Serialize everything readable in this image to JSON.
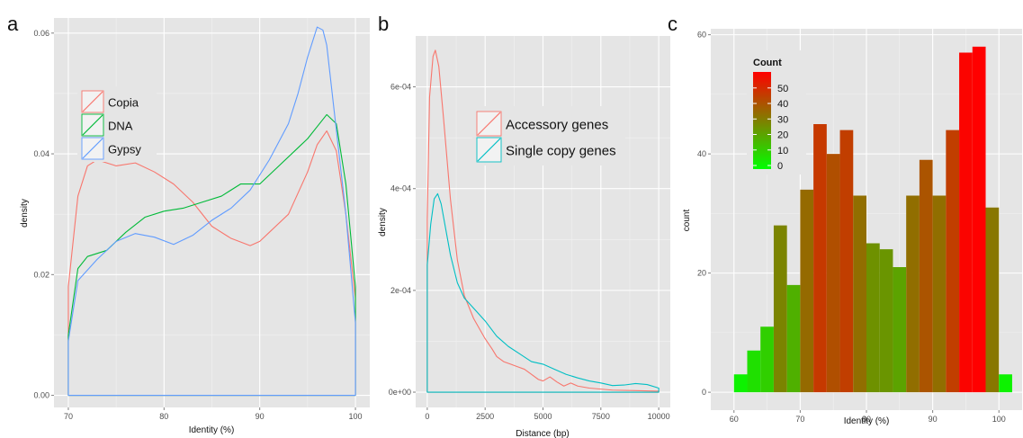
{
  "chart_data": [
    {
      "panel": "a",
      "type": "line",
      "title": "",
      "xlabel": "Identity (%)",
      "ylabel": "density",
      "xlim": [
        68.5,
        101.5
      ],
      "ylim": [
        -0.002,
        0.0625
      ],
      "x_ticks": [
        70,
        80,
        90,
        100
      ],
      "y_ticks": [
        0.0,
        0.02,
        0.04,
        0.06
      ],
      "y_tick_labels": [
        "0.00",
        "0.02",
        "0.04",
        "0.06"
      ],
      "grid": true,
      "legend_position": "top-left",
      "series": [
        {
          "name": "Copia",
          "color": "#F8766D",
          "points": [
            [
              70,
              0
            ],
            [
              70,
              0.018
            ],
            [
              71,
              0.033
            ],
            [
              72,
              0.038
            ],
            [
              73,
              0.039
            ],
            [
              75,
              0.038
            ],
            [
              77,
              0.0385
            ],
            [
              79,
              0.037
            ],
            [
              81,
              0.035
            ],
            [
              83,
              0.032
            ],
            [
              85,
              0.028
            ],
            [
              87,
              0.026
            ],
            [
              89,
              0.0248
            ],
            [
              90,
              0.0255
            ],
            [
              91,
              0.027
            ],
            [
              93,
              0.03
            ],
            [
              95,
              0.037
            ],
            [
              96,
              0.0415
            ],
            [
              97,
              0.0438
            ],
            [
              98,
              0.0405
            ],
            [
              99,
              0.03
            ],
            [
              100,
              0.016
            ],
            [
              100,
              0
            ]
          ]
        },
        {
          "name": "DNA",
          "color": "#00BA38",
          "points": [
            [
              70,
              0
            ],
            [
              70,
              0.01
            ],
            [
              71,
              0.021
            ],
            [
              72,
              0.023
            ],
            [
              74,
              0.024
            ],
            [
              76,
              0.027
            ],
            [
              78,
              0.0295
            ],
            [
              80,
              0.0305
            ],
            [
              82,
              0.031
            ],
            [
              84,
              0.032
            ],
            [
              86,
              0.033
            ],
            [
              88,
              0.035
            ],
            [
              90,
              0.035
            ],
            [
              92,
              0.038
            ],
            [
              94,
              0.041
            ],
            [
              95,
              0.0425
            ],
            [
              96,
              0.0445
            ],
            [
              97,
              0.0465
            ],
            [
              98,
              0.045
            ],
            [
              99,
              0.035
            ],
            [
              100,
              0.018
            ],
            [
              100,
              0
            ]
          ]
        },
        {
          "name": "Gypsy",
          "color": "#619CFF",
          "points": [
            [
              70,
              0
            ],
            [
              70,
              0.009
            ],
            [
              71,
              0.019
            ],
            [
              73,
              0.0225
            ],
            [
              75,
              0.0255
            ],
            [
              77,
              0.0268
            ],
            [
              79,
              0.0262
            ],
            [
              81,
              0.025
            ],
            [
              83,
              0.0265
            ],
            [
              85,
              0.029
            ],
            [
              87,
              0.031
            ],
            [
              89,
              0.034
            ],
            [
              91,
              0.039
            ],
            [
              93,
              0.045
            ],
            [
              94,
              0.05
            ],
            [
              95,
              0.056
            ],
            [
              96,
              0.061
            ],
            [
              96.6,
              0.0605
            ],
            [
              97,
              0.058
            ],
            [
              98,
              0.044
            ],
            [
              99,
              0.03
            ],
            [
              100,
              0.012
            ],
            [
              100,
              0
            ]
          ]
        }
      ]
    },
    {
      "panel": "b",
      "type": "line",
      "title": "",
      "xlabel": "Distance (bp)",
      "ylabel": "density",
      "xlim": [
        -500,
        10500
      ],
      "ylim": [
        -3e-05,
        0.0007
      ],
      "x_ticks": [
        0,
        2500,
        5000,
        7500,
        10000
      ],
      "y_ticks": [
        0,
        0.0002,
        0.0004,
        0.0006
      ],
      "y_tick_labels": [
        "0e+00",
        "2e-04",
        "4e-04",
        "6e-04"
      ],
      "grid": true,
      "legend_position": "top-right",
      "series": [
        {
          "name": "Accessory genes",
          "color": "#F8766D",
          "points": [
            [
              0,
              0
            ],
            [
              0,
              0.00034
            ],
            [
              100,
              0.00058
            ],
            [
              250,
              0.00066
            ],
            [
              350,
              0.000672
            ],
            [
              500,
              0.00064
            ],
            [
              700,
              0.00054
            ],
            [
              1000,
              0.00038
            ],
            [
              1300,
              0.00026
            ],
            [
              1600,
              0.00019
            ],
            [
              2000,
              0.000145
            ],
            [
              2500,
              0.000105
            ],
            [
              2800,
              8.5e-05
            ],
            [
              3000,
              7e-05
            ],
            [
              3300,
              6e-05
            ],
            [
              3600,
              5.5e-05
            ],
            [
              3900,
              5e-05
            ],
            [
              4200,
              4.5e-05
            ],
            [
              4500,
              3.5e-05
            ],
            [
              4800,
              2.5e-05
            ],
            [
              5000,
              2.2e-05
            ],
            [
              5300,
              3e-05
            ],
            [
              5600,
              2e-05
            ],
            [
              5900,
              1.2e-05
            ],
            [
              6200,
              1.8e-05
            ],
            [
              6500,
              1.2e-05
            ],
            [
              7000,
              8e-06
            ],
            [
              7500,
              6e-06
            ],
            [
              8000,
              4e-06
            ],
            [
              9000,
              3e-06
            ],
            [
              10000,
              2e-06
            ],
            [
              10000,
              0
            ]
          ]
        },
        {
          "name": "Single copy genes",
          "color": "#00BFC4",
          "points": [
            [
              0,
              0
            ],
            [
              0,
              0.00025
            ],
            [
              150,
              0.00033
            ],
            [
              300,
              0.00038
            ],
            [
              450,
              0.00039
            ],
            [
              600,
              0.00037
            ],
            [
              800,
              0.00032
            ],
            [
              1000,
              0.00027
            ],
            [
              1300,
              0.000215
            ],
            [
              1600,
              0.000185
            ],
            [
              2000,
              0.000165
            ],
            [
              2500,
              0.00014
            ],
            [
              3000,
              0.00011
            ],
            [
              3500,
              9e-05
            ],
            [
              4000,
              7.5e-05
            ],
            [
              4500,
              6e-05
            ],
            [
              5000,
              5.5e-05
            ],
            [
              5500,
              4.5e-05
            ],
            [
              6000,
              3.5e-05
            ],
            [
              6500,
              2.8e-05
            ],
            [
              7000,
              2.2e-05
            ],
            [
              7500,
              1.8e-05
            ],
            [
              8000,
              1.3e-05
            ],
            [
              8500,
              1.4e-05
            ],
            [
              9000,
              1.7e-05
            ],
            [
              9500,
              1.5e-05
            ],
            [
              10000,
              8e-06
            ],
            [
              10000,
              0
            ]
          ]
        }
      ]
    },
    {
      "panel": "c",
      "type": "bar",
      "title": "",
      "xlabel": "Identity (%)",
      "ylabel": "count",
      "xlim": [
        56.5,
        103.5
      ],
      "ylim": [
        -3,
        61
      ],
      "x_ticks": [
        60,
        70,
        80,
        90,
        100
      ],
      "y_ticks": [
        0,
        20,
        40,
        60
      ],
      "bin_width": 2,
      "bin_centers": [
        61,
        63,
        65,
        67,
        69,
        71,
        73,
        75,
        77,
        79,
        81,
        83,
        85,
        87,
        89,
        91,
        93,
        95,
        97,
        99,
        101
      ],
      "values": [
        3,
        7,
        11,
        28,
        18,
        34,
        45,
        40,
        44,
        33,
        25,
        24,
        21,
        33,
        39,
        33,
        44,
        57,
        58,
        31,
        3
      ],
      "grid": true,
      "legend_position": "top-left",
      "legend": {
        "title": "Count",
        "ticks": [
          0,
          10,
          20,
          30,
          40,
          50
        ],
        "range": [
          0,
          58
        ],
        "low_color": "#00FF00",
        "high_color": "#FF0000"
      }
    }
  ],
  "panels": {
    "a": "a",
    "b": "b",
    "c": "c"
  }
}
